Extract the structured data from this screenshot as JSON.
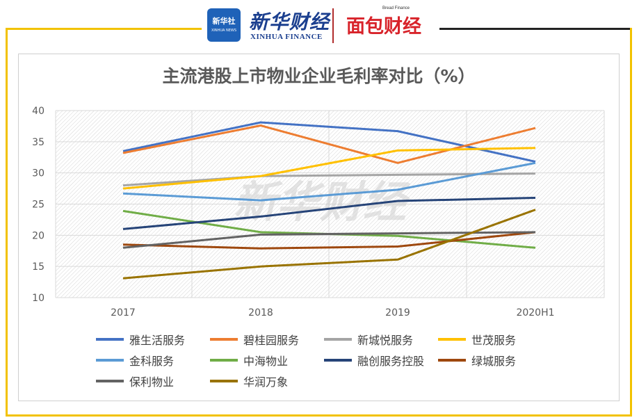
{
  "header": {
    "logo_box_line1": "新华社",
    "logo_box_line2": "XINHUA NEWS",
    "xinhua_cn": "新华财经",
    "xinhua_en": "XINHUA FINANCE",
    "bread_en": "Bread Finance",
    "bread_cn": "面包财经"
  },
  "watermark": "新华财经",
  "chart_data": {
    "type": "line",
    "title": "主流港股上市物业企业毛利率对比（%）",
    "categories": [
      "2017",
      "2018",
      "2019",
      "2020H1"
    ],
    "ylim": [
      10,
      40
    ],
    "yticks": [
      10,
      15,
      20,
      25,
      30,
      35,
      40
    ],
    "grid": true,
    "legend_position": "bottom",
    "series": [
      {
        "name": "雅生活服务",
        "color": "#4472c4",
        "values": [
          33.5,
          38.1,
          36.7,
          31.8
        ]
      },
      {
        "name": "碧桂园服务",
        "color": "#ed7d31",
        "values": [
          33.2,
          37.6,
          31.6,
          37.2
        ]
      },
      {
        "name": "新城悦服务",
        "color": "#a5a5a5",
        "values": [
          28.0,
          29.5,
          29.7,
          29.9
        ]
      },
      {
        "name": "世茂服务",
        "color": "#ffc000",
        "values": [
          27.5,
          29.5,
          33.6,
          34.0
        ]
      },
      {
        "name": "金科服务",
        "color": "#5b9bd5",
        "values": [
          26.7,
          25.6,
          27.3,
          31.6
        ]
      },
      {
        "name": "中海物业",
        "color": "#70ad47",
        "values": [
          23.9,
          20.5,
          19.9,
          18.0
        ]
      },
      {
        "name": "融创服务控股",
        "color": "#264478",
        "values": [
          21.0,
          23.0,
          25.5,
          26.0
        ]
      },
      {
        "name": "绿城服务",
        "color": "#9e480e",
        "values": [
          18.5,
          17.9,
          18.2,
          20.5
        ]
      },
      {
        "name": "保利物业",
        "color": "#636363",
        "values": [
          18.0,
          20.1,
          20.3,
          20.5
        ]
      },
      {
        "name": "华润万象",
        "color": "#997300",
        "values": [
          13.1,
          15.0,
          16.1,
          24.1
        ]
      }
    ]
  }
}
